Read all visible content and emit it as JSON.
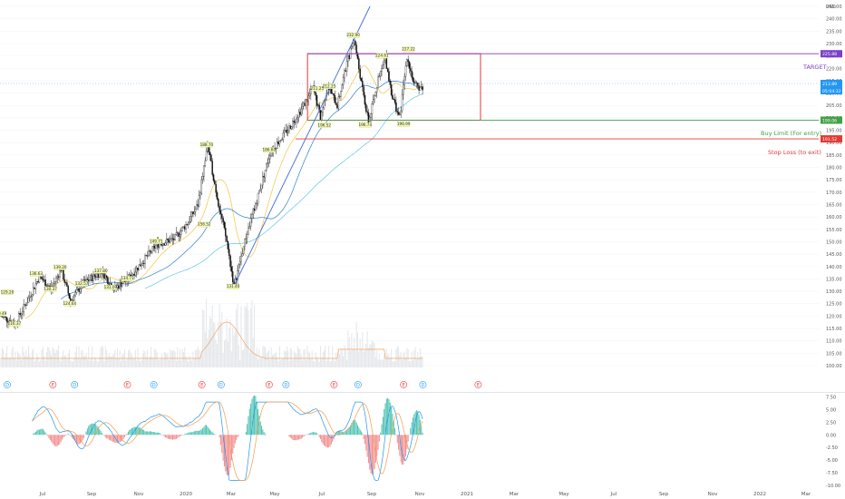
{
  "chart_data": {
    "type": "candlestick",
    "currency": "USD",
    "price_axis": {
      "ylim": [
        95,
        250
      ],
      "ticks": [
        "100.00",
        "105.00",
        "110.00",
        "115.00",
        "120.00",
        "125.00",
        "130.00",
        "135.00",
        "140.00",
        "145.00",
        "150.00",
        "155.00",
        "160.00",
        "165.00",
        "170.00",
        "175.00",
        "180.00",
        "185.00",
        "190.00",
        "195.00",
        "200.00",
        "205.00",
        "210.00",
        "215.00",
        "220.00",
        "225.00",
        "230.00",
        "235.00",
        "240.00",
        "245.00"
      ]
    },
    "oscillator_axis": {
      "ylim": [
        -10,
        7.5
      ],
      "ticks": [
        "7.50",
        "5.00",
        "2.50",
        "0.00",
        "-2.50",
        "-5.00",
        "-7.50",
        "-10.00"
      ]
    },
    "x_axis": {
      "ticks": [
        "Jul",
        "Sep",
        "Nov",
        "2020",
        "Mar",
        "May",
        "Jul",
        "Sep",
        "Nov",
        "2021",
        "Mar",
        "May",
        "Jul",
        "Sep",
        "Nov",
        "2022",
        "Mar"
      ]
    },
    "price_tags": [
      {
        "value": "225.88",
        "color": "#7b3fc8"
      },
      {
        "value": "213.89",
        "color": "#2196f3"
      },
      {
        "value": "05:04:32",
        "color": "#2196f3"
      },
      {
        "value": "199.06",
        "color": "#43a047"
      },
      {
        "value": "191.52",
        "color": "#e53935"
      }
    ],
    "annotations": {
      "target": "TARGET",
      "buy": "Buy Limit (For entry)",
      "stop": "Stop Loss (to exit)"
    },
    "levels": {
      "target": 225.88,
      "buy": 199.06,
      "stop": 191.52
    },
    "price_labels": [
      {
        "text": "120.49",
        "month": 0.0,
        "price": 120.5
      },
      {
        "text": "129.20",
        "month": 0.3,
        "price": 129.2
      },
      {
        "text": "116.37",
        "month": 0.6,
        "price": 116.4
      },
      {
        "text": "136.63",
        "month": 1.5,
        "price": 136.6
      },
      {
        "text": "130.37",
        "month": 2.1,
        "price": 130.4
      },
      {
        "text": "139.20",
        "month": 2.5,
        "price": 139.2
      },
      {
        "text": "124.64",
        "month": 2.9,
        "price": 124.6
      },
      {
        "text": "132.57",
        "month": 3.4,
        "price": 132.6
      },
      {
        "text": "137.80",
        "month": 4.2,
        "price": 137.8
      },
      {
        "text": "131.09",
        "month": 4.6,
        "price": 131.1
      },
      {
        "text": "134.71",
        "month": 5.3,
        "price": 134.7
      },
      {
        "text": "149.71",
        "month": 6.5,
        "price": 149.7
      },
      {
        "text": "156.52",
        "month": 8.5,
        "price": 156.5
      },
      {
        "text": "188.70",
        "month": 8.6,
        "price": 188.7
      },
      {
        "text": "131.40",
        "month": 9.7,
        "price": 131.4
      },
      {
        "text": "186.60",
        "month": 11.2,
        "price": 186.6
      },
      {
        "text": "211.25",
        "month": 13.2,
        "price": 211.3
      },
      {
        "text": "212.25",
        "month": 13.7,
        "price": 212.3
      },
      {
        "text": "196.52",
        "month": 13.5,
        "price": 196.5
      },
      {
        "text": "232.90",
        "month": 14.7,
        "price": 232.9
      },
      {
        "text": "196.74",
        "month": 15.2,
        "price": 196.7
      },
      {
        "text": "224.61",
        "month": 15.9,
        "price": 224.6
      },
      {
        "text": "227.22",
        "month": 17.0,
        "price": 227.2
      },
      {
        "text": "196.99",
        "month": 16.8,
        "price": 197.0
      }
    ],
    "events": [
      {
        "type": "D",
        "month": 0.0,
        "color": "#2196f3"
      },
      {
        "type": "E",
        "month": 1.9,
        "color": "#e53935"
      },
      {
        "type": "D",
        "month": 2.8,
        "color": "#2196f3"
      },
      {
        "type": "E",
        "month": 5.0,
        "color": "#e53935"
      },
      {
        "type": "D",
        "month": 6.1,
        "color": "#2196f3"
      },
      {
        "type": "E",
        "month": 8.1,
        "color": "#e53935"
      },
      {
        "type": "D",
        "month": 8.9,
        "color": "#2196f3"
      },
      {
        "type": "E",
        "month": 10.9,
        "color": "#e53935"
      },
      {
        "type": "D",
        "month": 11.6,
        "color": "#2196f3"
      },
      {
        "type": "E",
        "month": 13.6,
        "color": "#e53935"
      },
      {
        "type": "D",
        "month": 14.6,
        "color": "#2196f3"
      },
      {
        "type": "E",
        "month": 16.5,
        "color": "#e53935"
      },
      {
        "type": "D",
        "month": 17.3,
        "color": "#2196f3"
      },
      {
        "type": "E",
        "month": 19.6,
        "color": "#e53935"
      }
    ],
    "trendline": {
      "from": {
        "month": 9.7,
        "price": 131.4
      },
      "to": {
        "month": 15.4,
        "price": 245
      }
    },
    "rectangle": {
      "from_month": 12.8,
      "to_month": 20.0,
      "top": 225.88,
      "bottom": 199.06
    }
  }
}
